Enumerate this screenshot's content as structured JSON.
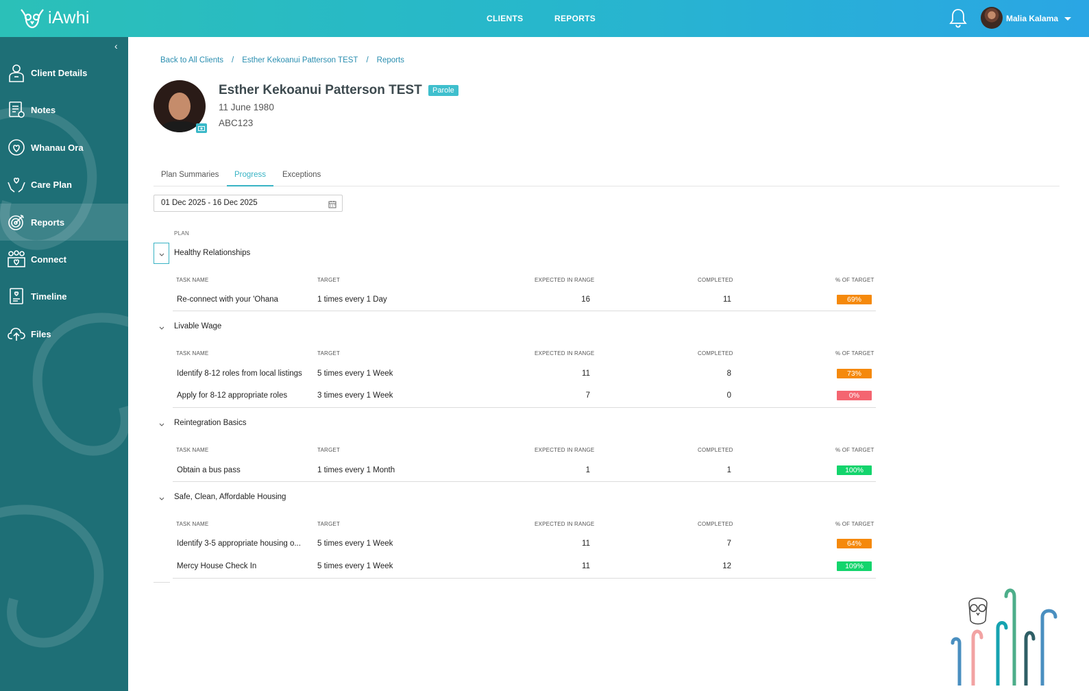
{
  "app": {
    "name": "iAwhi"
  },
  "topnav": {
    "clients": "CLIENTS",
    "reports": "REPORTS"
  },
  "user": {
    "name": "Malia Kalama"
  },
  "sidebar": {
    "items": [
      {
        "label": "Client Details",
        "icon": "client-details-icon"
      },
      {
        "label": "Notes",
        "icon": "notes-icon"
      },
      {
        "label": "Whanau Ora",
        "icon": "whanau-ora-icon"
      },
      {
        "label": "Care Plan",
        "icon": "care-plan-icon"
      },
      {
        "label": "Reports",
        "icon": "reports-icon",
        "active": true
      },
      {
        "label": "Connect",
        "icon": "connect-icon"
      },
      {
        "label": "Timeline",
        "icon": "timeline-icon"
      },
      {
        "label": "Files",
        "icon": "files-icon"
      }
    ]
  },
  "breadcrumb": [
    "Back to All Clients",
    "Esther Kekoanui Patterson TEST",
    "Reports"
  ],
  "client": {
    "name": "Esther Kekoanui Patterson TEST",
    "badge": "Parole",
    "dob": "11 June 1980",
    "id": "ABC123"
  },
  "tabs": [
    "Plan Summaries",
    "Progress",
    "Exceptions"
  ],
  "active_tab": "Progress",
  "date_range": "01 Dec 2025 - 16 Dec 2025",
  "table_headers": {
    "plan": "PLAN",
    "task_name": "TASK NAME",
    "target": "TARGET",
    "expected": "EXPECTED IN RANGE",
    "completed": "COMPLETED",
    "pct": "% OF TARGET"
  },
  "plans": [
    {
      "name": "Healthy Relationships",
      "tasks": [
        {
          "name": "Re-connect with your 'Ohana",
          "target": "1 times every 1 Day",
          "expected": "16",
          "completed": "11",
          "pct": "69%",
          "status_color": "#f5890c"
        }
      ]
    },
    {
      "name": "Livable Wage",
      "tasks": [
        {
          "name": "Identify 8-12 roles from local listings",
          "target": "5 times every 1 Week",
          "expected": "11",
          "completed": "8",
          "pct": "73%",
          "status_color": "#f5890c"
        },
        {
          "name": "Apply for 8-12 appropriate roles",
          "target": "3 times every 1 Week",
          "expected": "7",
          "completed": "0",
          "pct": "0%",
          "status_color": "#f46570"
        }
      ]
    },
    {
      "name": "Reintegration Basics",
      "tasks": [
        {
          "name": "Obtain a bus pass",
          "target": "1 times every 1 Month",
          "expected": "1",
          "completed": "1",
          "pct": "100%",
          "status_color": "#13d46c"
        }
      ]
    },
    {
      "name": "Safe, Clean, Affordable Housing",
      "tasks": [
        {
          "name": "Identify 3-5 appropriate housing o...",
          "target": "5 times every 1 Week",
          "expected": "11",
          "completed": "7",
          "pct": "64%",
          "status_color": "#f5890c"
        },
        {
          "name": "Mercy House Check In",
          "target": "5 times every 1 Week",
          "expected": "11",
          "completed": "12",
          "pct": "109%",
          "status_color": "#13d46c"
        }
      ]
    }
  ]
}
